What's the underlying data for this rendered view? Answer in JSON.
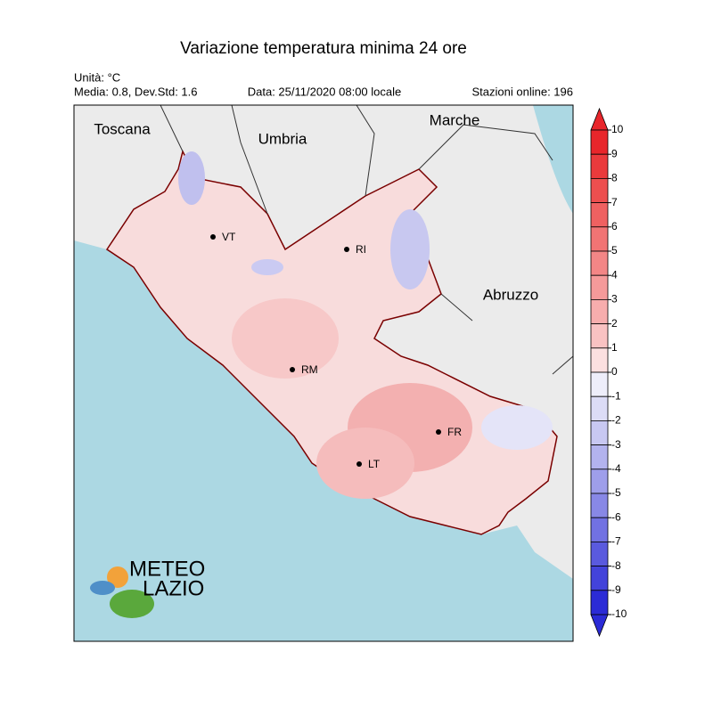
{
  "title": "Variazione temperatura minima 24 ore",
  "info": {
    "unit": "Unità: °C",
    "stats": "Media: 0.8, Dev.Std: 1.6",
    "date": "Data: 25/11/2020 08:00 locale",
    "stations": "Stazioni online: 196"
  },
  "regions": [
    "Toscana",
    "Umbria",
    "Marche",
    "Abruzzo"
  ],
  "cities": [
    "VT",
    "RI",
    "RM",
    "FR",
    "LT"
  ],
  "logo": [
    "METEO",
    "LAZIO"
  ],
  "colorbar": {
    "ticks": [
      10,
      9,
      8,
      7,
      6,
      5,
      4,
      3,
      2,
      1,
      0,
      -1,
      -2,
      -3,
      -4,
      -5,
      -6,
      -7,
      -8,
      -9,
      -10
    ],
    "colors": [
      "#e8262b",
      "#ea3a3c",
      "#ed4f4f",
      "#ef6161",
      "#f17474",
      "#f38686",
      "#f59a9a",
      "#f7adad",
      "#f9c2c2",
      "#fce0e0",
      "#eeeefa",
      "#dcdcf6",
      "#c8c8f2",
      "#b3b3ee",
      "#9e9eea",
      "#8888e6",
      "#7171e2",
      "#5a5ade",
      "#4343da",
      "#2b2bd6"
    ]
  }
}
